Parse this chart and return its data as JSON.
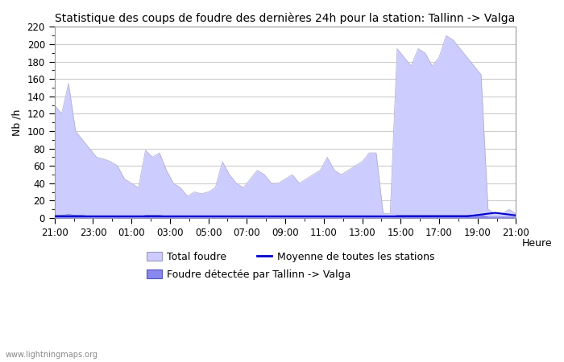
{
  "title": "Statistique des coups de foudre des dernières 24h pour la station: Tallinn -> Valga",
  "xlabel": "Heure",
  "ylabel": "Nb /h",
  "ylim": [
    0,
    220
  ],
  "yticks": [
    0,
    20,
    40,
    60,
    80,
    100,
    120,
    140,
    160,
    180,
    200,
    220
  ],
  "x_label_hours": [
    "21:00",
    "23:00",
    "01:00",
    "03:00",
    "05:00",
    "07:00",
    "09:00",
    "11:00",
    "13:00",
    "15:00",
    "17:00",
    "19:00",
    "21:00"
  ],
  "total_foudre": [
    130,
    120,
    155,
    100,
    90,
    80,
    70,
    68,
    65,
    60,
    45,
    40,
    35,
    78,
    70,
    75,
    55,
    40,
    35,
    25,
    30,
    28,
    30,
    35,
    65,
    50,
    40,
    35,
    45,
    55,
    50,
    40,
    40,
    45,
    50,
    40,
    45,
    50,
    55,
    70,
    55,
    50,
    55,
    60,
    65,
    75,
    75,
    5,
    5,
    195,
    185,
    175,
    195,
    190,
    175,
    185,
    210,
    205,
    195,
    185,
    175,
    165,
    10,
    5,
    5,
    10,
    5
  ],
  "foudre_detectee": [
    3,
    3,
    4,
    3,
    3,
    2,
    2,
    2,
    2,
    2,
    2,
    2,
    1,
    3,
    3,
    3,
    2,
    1,
    1,
    1,
    1,
    1,
    1,
    1,
    2,
    1,
    1,
    1,
    2,
    2,
    2,
    1,
    1,
    1,
    2,
    2,
    2,
    2,
    2,
    2,
    2,
    2,
    2,
    2,
    2,
    2,
    2,
    1,
    1,
    3,
    3,
    3,
    3,
    3,
    3,
    3,
    3,
    3,
    3,
    3,
    3,
    3,
    1,
    1,
    1,
    1,
    1
  ],
  "moyenne": [
    2,
    2,
    2,
    2,
    2,
    2,
    2,
    2,
    2,
    2,
    2,
    2,
    2,
    2,
    2,
    2,
    2,
    2,
    2,
    2,
    2,
    2,
    2,
    2,
    2,
    2,
    2,
    2,
    2,
    2,
    2,
    2,
    2,
    2,
    2,
    2,
    2,
    2,
    2,
    2,
    2,
    2,
    2,
    2,
    2,
    2,
    2,
    2,
    2,
    2,
    2,
    2,
    2,
    2,
    2,
    2,
    2,
    2,
    2,
    2,
    3,
    4,
    5,
    6,
    5,
    4,
    3
  ],
  "total_color": "#ccccff",
  "total_edge_color": "#aaaacc",
  "detectee_color": "#8888ee",
  "detectee_edge_color": "#5555bb",
  "moyenne_color": "#0000cc",
  "background_color": "#ffffff",
  "grid_color": "#cccccc",
  "watermark": "www.lightningmaps.org",
  "legend_total": "Total foudre",
  "legend_detectee": "Foudre détectée par Tallinn -> Valga",
  "legend_moyenne": "Moyenne de toutes les stations",
  "title_fontsize": 10,
  "axis_fontsize": 9,
  "tick_fontsize": 8.5
}
